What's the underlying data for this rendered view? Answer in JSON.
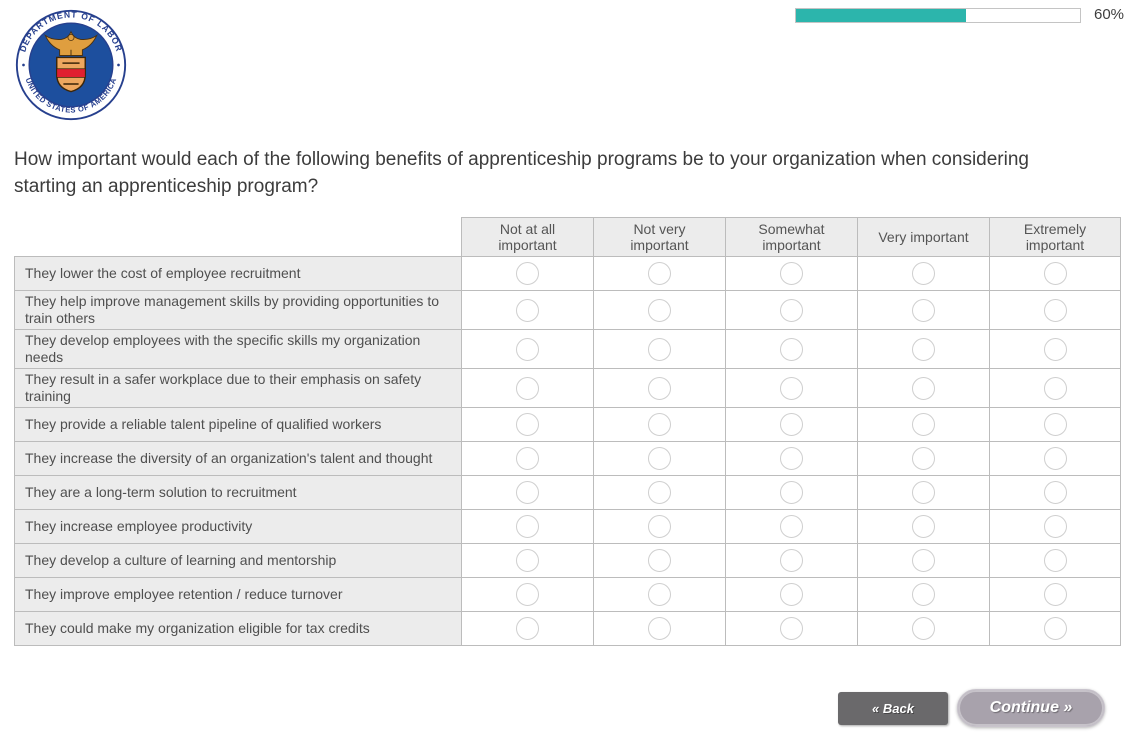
{
  "logo": {
    "top_text": "DEPARTMENT OF LABOR",
    "bottom_text": "UNITED STATES OF AMERICA"
  },
  "progress": {
    "percent": 60,
    "percent_label": "60%",
    "fill_color": "#2cb5ac"
  },
  "question": {
    "text": "How important would each of the following benefits of apprenticeship programs be to your organization when considering starting an apprenticeship program?"
  },
  "matrix": {
    "columns": [
      "Not at all important",
      "Not very important",
      "Somewhat important",
      "Very important",
      "Extremely important"
    ],
    "rows": [
      "They lower the cost of employee recruitment",
      "They help improve management skills by providing opportunities to train others",
      "They develop employees with the specific skills my organization needs",
      "They result in a safer workplace due to their emphasis on safety training",
      "They provide a reliable talent pipeline of qualified workers",
      "They increase the diversity of an organization's talent and thought",
      "They are a long-term solution to recruitment",
      "They increase employee productivity",
      "They develop a culture of learning and mentorship",
      "They improve employee retention / reduce turnover",
      "They could make my organization eligible for tax credits"
    ]
  },
  "buttons": {
    "back": "« Back",
    "continue": "Continue »"
  }
}
